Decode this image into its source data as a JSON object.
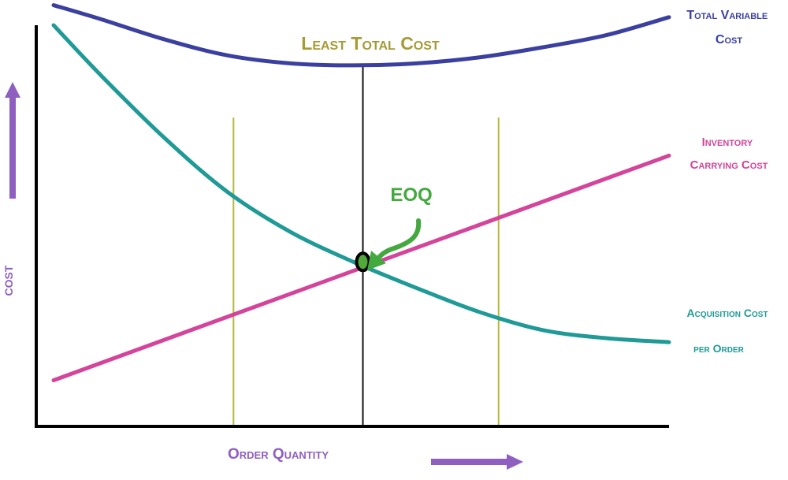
{
  "colors": {
    "total": "#3a3fa0",
    "carrying": "#d4449a",
    "acquisition": "#1f9a97",
    "guide": "#b7b83a",
    "eoq_line": "#111111",
    "eoq_marker": "#52a83a",
    "axis_label": "#8f5fc0",
    "least_total_cost": "#a69a35",
    "eoq_label": "#43a83e"
  },
  "chart_data": {
    "type": "line",
    "title": "Least Total Cost",
    "xlabel": "Order Quantity",
    "ylabel": "COST",
    "grid": false,
    "ticks": false,
    "xlim": [
      0,
      10
    ],
    "ylim": [
      0,
      10
    ],
    "series": [
      {
        "name": "Total Variable Cost",
        "label_lines": [
          "Total Variable",
          "Cost"
        ],
        "color_key": "total",
        "x": [
          0.25,
          1.0,
          2.0,
          3.0,
          4.0,
          5.0,
          6.0,
          7.0,
          8.0,
          9.0,
          10.0
        ],
        "y": [
          10.5,
          10.15,
          9.65,
          9.25,
          9.05,
          9.0,
          9.05,
          9.2,
          9.45,
          9.75,
          10.2
        ]
      },
      {
        "name": "Inventory Carrying Cost",
        "label_lines": [
          "Inventory",
          "Carrying Cost"
        ],
        "color_key": "carrying",
        "x": [
          0.25,
          10.0
        ],
        "y": [
          1.15,
          6.75
        ]
      },
      {
        "name": "Acquisition Cost per Order",
        "label_lines": [
          "Acquisition Cost",
          "per Order"
        ],
        "color_key": "acquisition",
        "x": [
          0.25,
          1.0,
          2.0,
          3.0,
          4.0,
          5.0,
          6.0,
          7.0,
          8.0,
          9.0,
          10.0
        ],
        "y": [
          10.0,
          8.75,
          7.2,
          5.85,
          4.85,
          4.1,
          3.45,
          2.85,
          2.4,
          2.2,
          2.1
        ]
      }
    ],
    "guides": [
      {
        "x": 3.1,
        "color_key": "guide"
      },
      {
        "x": 5.15,
        "color_key": "eoq_line"
      },
      {
        "x": 7.3,
        "color_key": "guide"
      }
    ],
    "eoq_point": {
      "label": "EOQ",
      "x": 5.15,
      "y": 4.1
    }
  }
}
